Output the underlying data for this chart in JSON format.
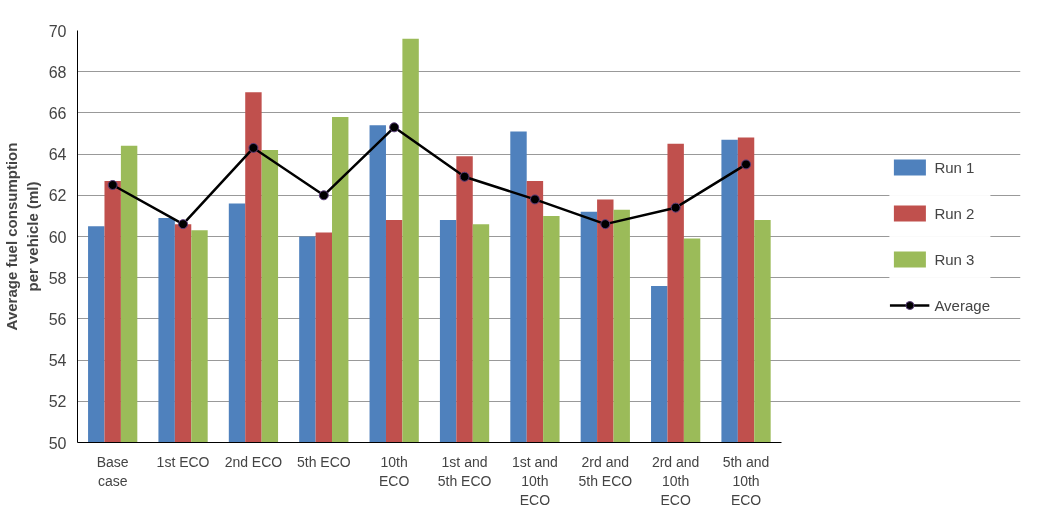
{
  "chart_data": {
    "type": "bar",
    "ylabel": "Average fuel consumption per vehicle (ml)",
    "categories": [
      "Base case",
      "1st ECO",
      "2nd ECO",
      "5th ECO",
      "10th ECO",
      "1st and 5th ECO",
      "1st and 10th ECO",
      "2rd and 5th ECO",
      "2rd and 10th ECO",
      "5th and 10th ECO"
    ],
    "series": [
      {
        "name": "Run 1",
        "color": "#4f81bd",
        "values": [
          60.5,
          60.9,
          61.6,
          60.0,
          65.4,
          60.8,
          65.1,
          61.2,
          57.6,
          64.7
        ]
      },
      {
        "name": "Run 2",
        "color": "#c0504d",
        "values": [
          62.7,
          60.6,
          67.0,
          60.2,
          60.8,
          63.9,
          62.7,
          61.8,
          64.5,
          64.8
        ]
      },
      {
        "name": "Run 3",
        "color": "#9bbb59",
        "values": [
          64.4,
          60.3,
          64.2,
          65.8,
          69.6,
          60.6,
          61.0,
          61.3,
          59.9,
          60.8
        ]
      },
      {
        "name": "Average",
        "type": "line",
        "color": "#000000",
        "marker": "circle",
        "values": [
          62.5,
          60.6,
          64.3,
          62.0,
          65.3,
          62.9,
          61.8,
          60.6,
          61.4,
          63.5
        ]
      }
    ],
    "ylim": [
      50,
      70
    ],
    "yticks": [
      50,
      52,
      54,
      56,
      58,
      60,
      62,
      64,
      66,
      68,
      70
    ],
    "grid": "y",
    "legend": "right"
  }
}
